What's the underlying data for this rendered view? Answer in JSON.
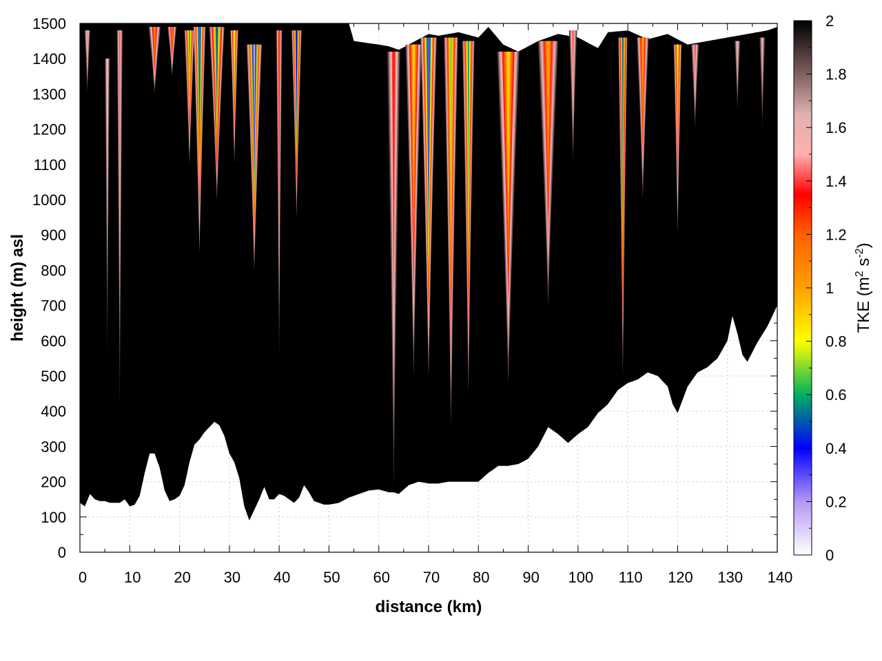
{
  "chart_data": {
    "type": "heatmap",
    "title": "",
    "xlabel": "distance (km)",
    "ylabel": "height (m) asl",
    "xlim": [
      0,
      140
    ],
    "ylim": [
      0,
      1500
    ],
    "x_ticks": [
      "0",
      "10",
      "20",
      "30",
      "40",
      "50",
      "60",
      "70",
      "80",
      "90",
      "100",
      "110",
      "120",
      "130",
      "140"
    ],
    "y_ticks": [
      "0",
      "100",
      "200",
      "300",
      "400",
      "500",
      "600",
      "700",
      "800",
      "900",
      "1000",
      "1100",
      "1200",
      "1300",
      "1400",
      "1500"
    ],
    "grid": true,
    "colorbar": {
      "label_main": "TKE (m",
      "label_sup1": "2",
      "label_mid": " s",
      "label_sup2": "-2",
      "label_end": ")",
      "range": [
        0,
        2
      ],
      "ticks": [
        "0",
        "0.2",
        "0.4",
        "0.6",
        "0.8",
        "1",
        "1.2",
        "1.4",
        "1.6",
        "1.8",
        "2"
      ],
      "stops": [
        {
          "value": 0.0,
          "color": "#ffffff"
        },
        {
          "value": 0.2,
          "color": "#b497f5"
        },
        {
          "value": 0.4,
          "color": "#0000ff"
        },
        {
          "value": 0.6,
          "color": "#00b060"
        },
        {
          "value": 0.8,
          "color": "#ffff00"
        },
        {
          "value": 1.0,
          "color": "#ffa000"
        },
        {
          "value": 1.2,
          "color": "#ff6000"
        },
        {
          "value": 1.35,
          "color": "#ff0000"
        },
        {
          "value": 1.5,
          "color": "#ffb0b0"
        },
        {
          "value": 1.65,
          "color": "#e0b0b0"
        },
        {
          "value": 1.8,
          "color": "#806060"
        },
        {
          "value": 2.0,
          "color": "#000000"
        }
      ]
    },
    "terrain": {
      "x": [
        0,
        1,
        2,
        3,
        4,
        5,
        6,
        7,
        8,
        9,
        10,
        11,
        12,
        13,
        14,
        15,
        16,
        17,
        18,
        19,
        20,
        21,
        22,
        23,
        24,
        25,
        26,
        27,
        28,
        29,
        30,
        31,
        32,
        33,
        34,
        35,
        36,
        37,
        38,
        39,
        40,
        41,
        42,
        43,
        44,
        45,
        46,
        47,
        48,
        49,
        50,
        52,
        54,
        56,
        58,
        60,
        62,
        63,
        64,
        66,
        68,
        70,
        72,
        74,
        76,
        78,
        80,
        82,
        84,
        86,
        88,
        90,
        92,
        94,
        96,
        98,
        100,
        102,
        104,
        106,
        108,
        110,
        112,
        114,
        116,
        118,
        119,
        120,
        122,
        124,
        126,
        128,
        130,
        131,
        132,
        133,
        134,
        136,
        138,
        140
      ],
      "y": [
        140,
        130,
        165,
        150,
        145,
        145,
        140,
        140,
        140,
        150,
        130,
        135,
        160,
        225,
        280,
        280,
        240,
        175,
        145,
        150,
        160,
        190,
        255,
        305,
        320,
        340,
        355,
        370,
        360,
        330,
        280,
        255,
        210,
        130,
        90,
        120,
        150,
        185,
        150,
        150,
        165,
        160,
        150,
        140,
        155,
        190,
        170,
        145,
        140,
        135,
        135,
        140,
        155,
        165,
        175,
        178,
        170,
        170,
        165,
        190,
        200,
        195,
        195,
        200,
        200,
        200,
        200,
        225,
        245,
        245,
        250,
        265,
        300,
        355,
        335,
        310,
        335,
        355,
        395,
        420,
        460,
        480,
        490,
        510,
        500,
        470,
        420,
        395,
        470,
        510,
        525,
        550,
        600,
        670,
        620,
        560,
        540,
        595,
        640,
        700
      ]
    },
    "top_surface_km": [
      0,
      54,
      55,
      60,
      62,
      64,
      66,
      70,
      72,
      76,
      80,
      82,
      85,
      88,
      92,
      96,
      100,
      104,
      106,
      110,
      114,
      118,
      122,
      126,
      130,
      134,
      138,
      140
    ],
    "top_surface_m": [
      1500,
      1500,
      1450,
      1440,
      1435,
      1425,
      1440,
      1470,
      1465,
      1475,
      1460,
      1490,
      1440,
      1420,
      1450,
      1470,
      1460,
      1430,
      1475,
      1480,
      1455,
      1470,
      1440,
      1450,
      1460,
      1470,
      1480,
      1490
    ],
    "plumes": [
      {
        "x": 1.5,
        "base": 1300,
        "top": 1480,
        "peak": 1.45,
        "width": 0.6
      },
      {
        "x": 5.5,
        "base": 550,
        "top": 1400,
        "peak": 1.5,
        "width": 0.5
      },
      {
        "x": 8,
        "base": 400,
        "top": 1480,
        "peak": 1.4,
        "width": 0.6
      },
      {
        "x": 15,
        "base": 1300,
        "top": 1490,
        "peak": 1.1,
        "width": 1.2
      },
      {
        "x": 18.5,
        "base": 1350,
        "top": 1490,
        "peak": 1.1,
        "width": 0.9
      },
      {
        "x": 22,
        "base": 1100,
        "top": 1480,
        "peak": 0.6,
        "width": 1.0
      },
      {
        "x": 24,
        "base": 850,
        "top": 1490,
        "peak": 0.3,
        "width": 1.2
      },
      {
        "x": 27.5,
        "base": 1000,
        "top": 1490,
        "peak": 0.5,
        "width": 1.5
      },
      {
        "x": 31,
        "base": 1100,
        "top": 1480,
        "peak": 0.8,
        "width": 0.8
      },
      {
        "x": 35,
        "base": 800,
        "top": 1440,
        "peak": 0.2,
        "width": 1.5
      },
      {
        "x": 40,
        "base": 550,
        "top": 1480,
        "peak": 1.2,
        "width": 0.6
      },
      {
        "x": 43.5,
        "base": 950,
        "top": 1480,
        "peak": 0.4,
        "width": 1.0
      },
      {
        "x": 63,
        "base": 180,
        "top": 1420,
        "peak": 1.3,
        "width": 1.3
      },
      {
        "x": 67,
        "base": 500,
        "top": 1440,
        "peak": 0.9,
        "width": 1.6
      },
      {
        "x": 70,
        "base": 500,
        "top": 1460,
        "peak": 0.3,
        "width": 1.6
      },
      {
        "x": 74.5,
        "base": 360,
        "top": 1460,
        "peak": 0.7,
        "width": 1.4
      },
      {
        "x": 78,
        "base": 450,
        "top": 1450,
        "peak": 0.6,
        "width": 1.2
      },
      {
        "x": 86,
        "base": 480,
        "top": 1420,
        "peak": 0.9,
        "width": 2.2
      },
      {
        "x": 94,
        "base": 700,
        "top": 1450,
        "peak": 1.0,
        "width": 2.0
      },
      {
        "x": 99,
        "base": 1100,
        "top": 1480,
        "peak": 1.4,
        "width": 0.8
      },
      {
        "x": 109,
        "base": 500,
        "top": 1460,
        "peak": 0.5,
        "width": 0.9
      },
      {
        "x": 113,
        "base": 1000,
        "top": 1460,
        "peak": 1.0,
        "width": 1.2
      },
      {
        "x": 120,
        "base": 900,
        "top": 1440,
        "peak": 0.8,
        "width": 0.8
      },
      {
        "x": 123.5,
        "base": 1200,
        "top": 1440,
        "peak": 1.4,
        "width": 0.8
      },
      {
        "x": 132,
        "base": 1250,
        "top": 1450,
        "peak": 1.55,
        "width": 0.6
      },
      {
        "x": 137,
        "base": 1200,
        "top": 1460,
        "peak": 1.6,
        "width": 0.6
      }
    ]
  }
}
